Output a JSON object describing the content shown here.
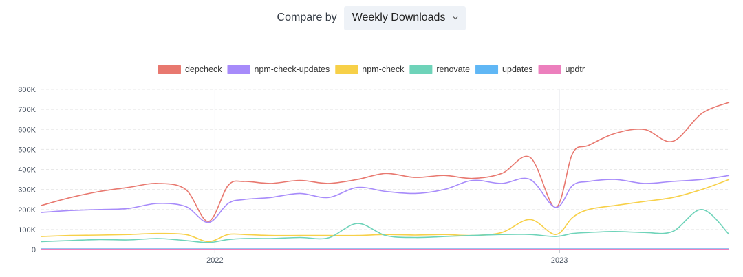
{
  "compare": {
    "label": "Compare by",
    "selected": "Weekly Downloads"
  },
  "icons": {
    "select_caret": "chevron-down-icon"
  },
  "chart_data": {
    "type": "line",
    "title": "",
    "xlabel": "",
    "ylabel": "",
    "x_tick_labels": [
      "2022",
      "2023"
    ],
    "x_ticks": [
      "2022-01-01",
      "2023-01-01"
    ],
    "xlim": [
      "2021-07-01",
      "2023-06-30"
    ],
    "y_tick_labels": [
      "0",
      "100K",
      "200K",
      "300K",
      "400K",
      "500K",
      "600K",
      "700K",
      "800K"
    ],
    "ylim": [
      0,
      800000
    ],
    "grid": "horizontal dashed",
    "legend_position": "top-center",
    "x": [
      "2021-07-01",
      "2021-08-01",
      "2021-09-01",
      "2021-10-01",
      "2021-11-01",
      "2021-12-01",
      "2021-12-25",
      "2022-01-15",
      "2022-02-01",
      "2022-03-01",
      "2022-04-01",
      "2022-05-01",
      "2022-06-01",
      "2022-07-01",
      "2022-08-01",
      "2022-09-01",
      "2022-10-01",
      "2022-11-01",
      "2022-12-01",
      "2022-12-28",
      "2023-01-15",
      "2023-02-01",
      "2023-03-01",
      "2023-04-01",
      "2023-05-01",
      "2023-06-01",
      "2023-06-30"
    ],
    "series": [
      {
        "name": "depcheck",
        "color": "#e8786f",
        "values": [
          220000,
          260000,
          290000,
          310000,
          330000,
          300000,
          140000,
          320000,
          340000,
          330000,
          345000,
          330000,
          350000,
          380000,
          360000,
          370000,
          355000,
          380000,
          460000,
          210000,
          480000,
          520000,
          580000,
          600000,
          540000,
          680000,
          735000
        ]
      },
      {
        "name": "npm-check-updates",
        "color": "#a78bfa",
        "values": [
          185000,
          195000,
          200000,
          205000,
          230000,
          215000,
          135000,
          230000,
          250000,
          260000,
          280000,
          260000,
          310000,
          290000,
          280000,
          300000,
          345000,
          330000,
          350000,
          210000,
          320000,
          340000,
          350000,
          330000,
          340000,
          350000,
          370000
        ]
      },
      {
        "name": "npm-check",
        "color": "#f7d048",
        "values": [
          65000,
          70000,
          72000,
          75000,
          80000,
          75000,
          40000,
          75000,
          75000,
          70000,
          70000,
          70000,
          70000,
          75000,
          72000,
          75000,
          70000,
          85000,
          150000,
          75000,
          160000,
          200000,
          220000,
          240000,
          260000,
          300000,
          350000
        ]
      },
      {
        "name": "renovate",
        "color": "#6ed3b9",
        "values": [
          40000,
          45000,
          50000,
          48000,
          55000,
          45000,
          35000,
          50000,
          55000,
          55000,
          60000,
          58000,
          130000,
          70000,
          60000,
          65000,
          70000,
          75000,
          75000,
          65000,
          80000,
          85000,
          90000,
          85000,
          90000,
          200000,
          75000
        ]
      },
      {
        "name": "updates",
        "color": "#60b7f5",
        "values": [
          3000,
          3000,
          3000,
          3000,
          3000,
          3000,
          3000,
          3000,
          3000,
          3000,
          3000,
          3000,
          3000,
          3000,
          3000,
          3000,
          3000,
          3000,
          3000,
          3000,
          3000,
          3000,
          3000,
          3000,
          3000,
          3000,
          3000
        ]
      },
      {
        "name": "updtr",
        "color": "#ec7fbd",
        "values": [
          1000,
          1000,
          1000,
          1000,
          1000,
          1000,
          1000,
          1000,
          1000,
          1000,
          1000,
          1000,
          1000,
          1000,
          1000,
          1000,
          1000,
          1000,
          1000,
          1000,
          1000,
          1000,
          1000,
          1000,
          1000,
          1000,
          1000
        ]
      }
    ]
  }
}
